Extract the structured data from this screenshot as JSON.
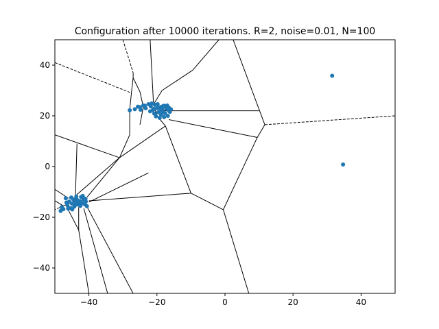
{
  "chart_data": {
    "type": "scatter",
    "title": "Configuration after 10000 iterations. R=2, noise=0.01, N=100",
    "xlabel": "",
    "ylabel": "",
    "xlim": [
      -50,
      50
    ],
    "ylim": [
      -50,
      50
    ],
    "xticks": [
      -40,
      -20,
      0,
      20,
      40
    ],
    "yticks": [
      -40,
      -20,
      0,
      20,
      40
    ],
    "xtick_labels": [
      "−40",
      "−20",
      "0",
      "20",
      "40"
    ],
    "ytick_labels": [
      "−40",
      "−20",
      "0",
      "20",
      "40"
    ],
    "grid": false,
    "point_color": "#1f77b4",
    "edge_color": "#000000",
    "points": [
      [
        31.5,
        35.8
      ],
      [
        34.7,
        0.8
      ],
      [
        -28.0,
        22.2
      ],
      [
        -26.5,
        22.6
      ],
      [
        -25.6,
        23.6
      ],
      [
        -24.8,
        22.4
      ],
      [
        -24.0,
        24.1
      ],
      [
        -23.3,
        23.0
      ],
      [
        -22.5,
        24.6
      ],
      [
        -21.8,
        23.7
      ],
      [
        -21.2,
        22.3
      ],
      [
        -20.6,
        24.4
      ],
      [
        -20.0,
        23.0
      ],
      [
        -19.6,
        21.4
      ],
      [
        -19.2,
        19.2
      ],
      [
        -18.8,
        20.4
      ],
      [
        -18.4,
        22.6
      ],
      [
        -18.0,
        24.0
      ],
      [
        -17.6,
        21.0
      ],
      [
        -17.2,
        22.8
      ],
      [
        -16.8,
        20.0
      ],
      [
        -16.5,
        23.2
      ],
      [
        -16.2,
        21.6
      ],
      [
        -19.8,
        24.6
      ],
      [
        -17.9,
        19.5
      ],
      [
        -22.0,
        21.8
      ],
      [
        -20.8,
        20.9
      ],
      [
        -18.6,
        23.6
      ],
      [
        -17.0,
        24.1
      ],
      [
        -19.0,
        22.0
      ],
      [
        -21.5,
        24.9
      ],
      [
        -23.6,
        24.0
      ],
      [
        -25.0,
        23.4
      ],
      [
        -20.3,
        19.8
      ],
      [
        -16.6,
        22.2
      ],
      [
        -18.2,
        21.3
      ],
      [
        -17.5,
        23.7
      ],
      [
        -19.4,
        23.3
      ],
      [
        -15.9,
        22.6
      ],
      [
        -20.9,
        22.7
      ],
      [
        -48.3,
        -17.5
      ],
      [
        -48.0,
        -16.0
      ],
      [
        -47.5,
        -16.8
      ],
      [
        -46.8,
        -12.5
      ],
      [
        -46.3,
        -15.3
      ],
      [
        -45.8,
        -13.8
      ],
      [
        -45.4,
        -16.4
      ],
      [
        -45.0,
        -14.6
      ],
      [
        -44.6,
        -12.9
      ],
      [
        -44.3,
        -15.8
      ],
      [
        -43.9,
        -14.0
      ],
      [
        -43.5,
        -13.1
      ],
      [
        -43.1,
        -15.0
      ],
      [
        -42.7,
        -13.6
      ],
      [
        -42.3,
        -12.0
      ],
      [
        -42.0,
        -14.5
      ],
      [
        -41.6,
        -13.0
      ],
      [
        -41.2,
        -14.9
      ],
      [
        -40.9,
        -13.8
      ],
      [
        -40.6,
        -15.6
      ],
      [
        -46.6,
        -14.2
      ],
      [
        -44.9,
        -16.9
      ],
      [
        -43.7,
        -11.8
      ],
      [
        -42.5,
        -15.5
      ],
      [
        -41.8,
        -11.6
      ],
      [
        -45.2,
        -12.2
      ],
      [
        -44.0,
        -15.2
      ],
      [
        -41.0,
        -12.7
      ],
      [
        -42.9,
        -14.2
      ],
      [
        -46.1,
        -16.6
      ]
    ],
    "voronoi_edges": [
      [
        -30.0,
        50.0,
        -27.0,
        37.0,
        true
      ],
      [
        -27.0,
        37.0,
        -27.0,
        35.0,
        false
      ],
      [
        -27.0,
        35.0,
        -27.5,
        29.0,
        false
      ],
      [
        -27.5,
        29.0,
        -28.0,
        22.5,
        false
      ],
      [
        -28.0,
        22.5,
        -28.0,
        12.5,
        false
      ],
      [
        -27.0,
        35.0,
        -25.0,
        29.5,
        false
      ],
      [
        -25.0,
        29.5,
        -24.0,
        23.5,
        false
      ],
      [
        -24.0,
        23.5,
        -25.0,
        16.5,
        false
      ],
      [
        -22.0,
        50.0,
        -21.0,
        24.5,
        false
      ],
      [
        -21.0,
        24.5,
        -18.5,
        30.0,
        false
      ],
      [
        -21.0,
        24.5,
        -20.0,
        20.0,
        false
      ],
      [
        -20.0,
        20.0,
        -17.5,
        16.0,
        false
      ],
      [
        -18.5,
        30.0,
        -9.5,
        38.0,
        false
      ],
      [
        -9.5,
        38.0,
        -1.8,
        50.0,
        false
      ],
      [
        2.4,
        50.0,
        11.7,
        16.5,
        false
      ],
      [
        -18.0,
        22.0,
        10.0,
        22.0,
        false
      ],
      [
        -16.5,
        18.5,
        9.5,
        11.5,
        false
      ],
      [
        9.5,
        11.5,
        11.7,
        16.5,
        false
      ],
      [
        11.7,
        16.5,
        50.0,
        20.0,
        true
      ],
      [
        -50.0,
        41.0,
        -27.5,
        29.0,
        true
      ],
      [
        -28.0,
        12.5,
        -31.0,
        3.5,
        false
      ],
      [
        -31.0,
        3.5,
        -17.5,
        16.0,
        false
      ],
      [
        -17.5,
        16.0,
        -10.0,
        -10.5,
        false
      ],
      [
        -10.0,
        -10.5,
        -0.5,
        -17.0,
        false
      ],
      [
        -0.5,
        -17.0,
        9.5,
        11.5,
        false
      ],
      [
        -0.5,
        -17.0,
        7.0,
        -50.0,
        false
      ],
      [
        -50.0,
        12.5,
        -31.0,
        3.5,
        false
      ],
      [
        -31.0,
        3.5,
        -43.5,
        -11.0,
        false
      ],
      [
        -31.0,
        3.5,
        -40.5,
        -12.0,
        false
      ],
      [
        -43.5,
        9.0,
        -44.0,
        -13.5,
        false
      ],
      [
        -44.0,
        -13.5,
        -47.5,
        -15.5,
        false
      ],
      [
        -50.0,
        -9.0,
        -46.0,
        -12.5,
        false
      ],
      [
        -50.0,
        -13.5,
        -47.5,
        -15.5,
        false
      ],
      [
        -47.5,
        -15.5,
        -50.0,
        -17.0,
        true
      ],
      [
        -40.0,
        -13.5,
        -10.0,
        -10.5,
        false
      ],
      [
        -40.0,
        -14.0,
        -22.5,
        -2.5,
        false
      ],
      [
        -43.0,
        -16.0,
        -43.0,
        -25.0,
        false
      ],
      [
        -43.0,
        -25.0,
        -40.0,
        -50.0,
        false
      ],
      [
        -41.5,
        -16.5,
        -34.5,
        -50.0,
        false
      ],
      [
        -40.5,
        -16.0,
        -27.0,
        -50.0,
        false
      ],
      [
        -46.5,
        -16.0,
        -43.0,
        -25.0,
        false
      ]
    ]
  }
}
